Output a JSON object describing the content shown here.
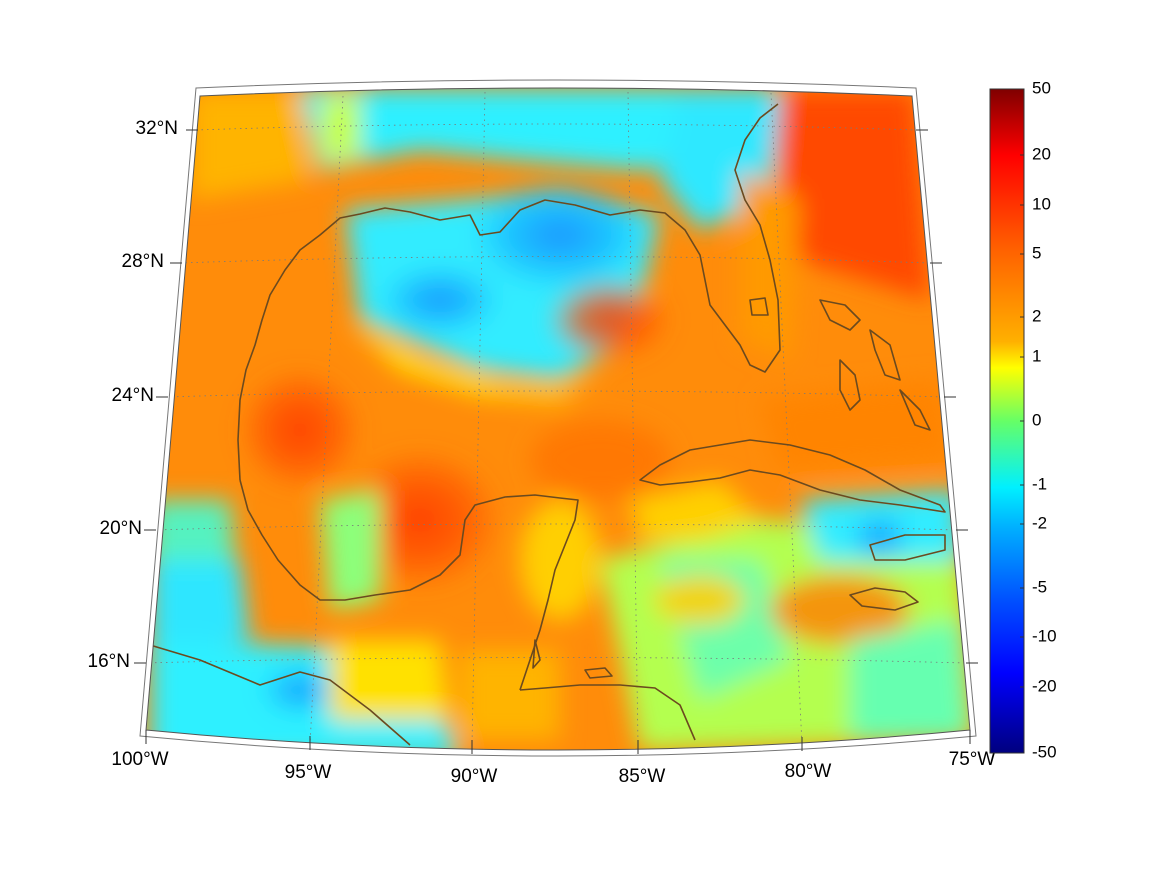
{
  "map": {
    "region": "Gulf of Mexico and Caribbean",
    "projection": "conic",
    "longitude_range": [
      -100,
      -75
    ],
    "latitude_range": [
      14,
      33
    ],
    "gridlines": true,
    "coastline_color": "#6b4a1f",
    "longitude_labels": [
      "100°W",
      "95°W",
      "90°W",
      "85°W",
      "80°W",
      "75°W"
    ],
    "latitude_labels": [
      "32°N",
      "28°N",
      "24°N",
      "20°N",
      "16°N"
    ],
    "colormap": "jet",
    "colorbar": {
      "ticks": [
        "50",
        "20",
        "10",
        "5",
        "2",
        "1",
        "0",
        "-1",
        "-2",
        "-5",
        "-10",
        "-20",
        "-50"
      ],
      "colors": [
        "#7f0000",
        "#ff0000",
        "#ff5a00",
        "#ff9400",
        "#ffd200",
        "#ffff00",
        "#66ff66",
        "#00f0ff",
        "#00c8ff",
        "#0064ff",
        "#0000ff",
        "#0000c8",
        "#00007f"
      ]
    }
  }
}
